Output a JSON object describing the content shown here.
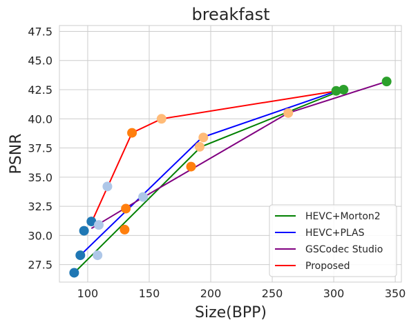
{
  "chart_data": {
    "type": "line",
    "title": "breakfast",
    "xlabel": "Size(BPP)",
    "ylabel": "PSNR",
    "xlim": [
      77,
      355
    ],
    "ylim": [
      26.0,
      48.0
    ],
    "xticks": [
      100,
      150,
      200,
      250,
      300,
      350
    ],
    "yticks": [
      27.5,
      30.0,
      32.5,
      35.0,
      37.5,
      40.0,
      42.5,
      45.0,
      47.5
    ],
    "xtick_labels": [
      "100",
      "150",
      "200",
      "250",
      "300",
      "350"
    ],
    "ytick_labels": [
      "27.5",
      "30.0",
      "32.5",
      "35.0",
      "37.5",
      "40.0",
      "42.5",
      "45.0",
      "47.5"
    ],
    "grid": true,
    "legend_position": "lower-right",
    "series": [
      {
        "name": "HEVC+Morton2",
        "color": "#008000",
        "x": [
          89,
          192,
          308
        ],
        "y": [
          26.8,
          37.6,
          42.5
        ]
      },
      {
        "name": "HEVC+PLAS",
        "color": "#0000ff",
        "x": [
          94,
          193,
          303
        ],
        "y": [
          28.3,
          38.4,
          42.4
        ]
      },
      {
        "name": "GSCodec Studio",
        "color": "#800080",
        "x": [
          103,
          144,
          263,
          343
        ],
        "y": [
          30.6,
          33.2,
          40.5,
          43.2
        ]
      },
      {
        "name": "Proposed",
        "color": "#ff0000",
        "x": [
          103,
          136,
          160,
          303
        ],
        "y": [
          31.1,
          38.8,
          40.0,
          42.4
        ]
      }
    ],
    "markers": [
      {
        "x": 89,
        "y": 26.8,
        "color": "#1f77b4"
      },
      {
        "x": 94,
        "y": 28.3,
        "color": "#1f77b4"
      },
      {
        "x": 97,
        "y": 30.4,
        "color": "#1f77b4"
      },
      {
        "x": 103,
        "y": 31.2,
        "color": "#1f77b4"
      },
      {
        "x": 108,
        "y": 28.3,
        "color": "#aec7e8"
      },
      {
        "x": 109,
        "y": 30.9,
        "color": "#aec7e8"
      },
      {
        "x": 116,
        "y": 34.2,
        "color": "#aec7e8"
      },
      {
        "x": 145,
        "y": 33.3,
        "color": "#aec7e8"
      },
      {
        "x": 130,
        "y": 30.5,
        "color": "#ff7f0e"
      },
      {
        "x": 131,
        "y": 32.3,
        "color": "#ff7f0e"
      },
      {
        "x": 136,
        "y": 38.8,
        "color": "#ff7f0e"
      },
      {
        "x": 184,
        "y": 35.9,
        "color": "#ff7f0e"
      },
      {
        "x": 160,
        "y": 40.0,
        "color": "#ffbb78"
      },
      {
        "x": 191,
        "y": 37.6,
        "color": "#ffbb78"
      },
      {
        "x": 194,
        "y": 38.4,
        "color": "#ffbb78"
      },
      {
        "x": 263,
        "y": 40.5,
        "color": "#ffbb78"
      },
      {
        "x": 302,
        "y": 42.4,
        "color": "#2ca02c"
      },
      {
        "x": 308,
        "y": 42.5,
        "color": "#2ca02c"
      },
      {
        "x": 343,
        "y": 43.2,
        "color": "#2ca02c"
      }
    ]
  }
}
